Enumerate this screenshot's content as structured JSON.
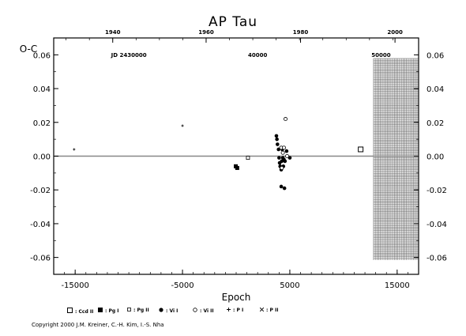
{
  "chart_data": {
    "type": "scatter",
    "title": "AP Tau",
    "xlabel": "Epoch",
    "ylabel": "O-C",
    "xlim": [
      -17000,
      17000
    ],
    "ylim": [
      -0.07,
      0.07
    ],
    "bottom_ticks": [
      -15000,
      -5000,
      5000,
      15000
    ],
    "bottom_tick_labels": [
      "-15000",
      "-5000",
      "5000",
      "15000"
    ],
    "left_ticks": [
      -0.06,
      -0.04,
      -0.02,
      0.0,
      0.02,
      0.04,
      0.06
    ],
    "left_tick_labels": [
      "-0.06",
      "-0.04",
      "-0.02",
      "0.00",
      "0.02",
      "0.04",
      "0.06"
    ],
    "top_year_axis": {
      "label_positions_epoch": [
        -11500,
        -2800,
        6000,
        14800
      ],
      "labels": [
        "1940",
        "1960",
        "1980",
        "2000"
      ]
    },
    "jd_axis": {
      "label_positions_epoch": [
        -10000,
        2000,
        13500
      ],
      "labels": [
        "JD 2430000",
        "40000",
        "50000"
      ]
    },
    "future_hatch_from_epoch": 12800,
    "zero_line": 0.0,
    "series": [
      {
        "name": ": Ccd II",
        "marker": "open-square",
        "points": [
          [
            11600,
            0.004
          ]
        ]
      },
      {
        "name": ": Pg I",
        "marker": "filled-square",
        "points": [
          [
            -35,
            -0.006
          ],
          [
            100,
            -0.007
          ]
        ]
      },
      {
        "name": ": Pg II",
        "marker": "small-open-square",
        "points": [
          [
            1100,
            -0.001
          ]
        ]
      },
      {
        "name": ": Vi I",
        "marker": "filled-circle",
        "points": [
          [
            3750,
            0.012
          ],
          [
            3800,
            0.01
          ],
          [
            3850,
            0.007
          ],
          [
            3950,
            0.004
          ],
          [
            4000,
            -0.001
          ],
          [
            4050,
            -0.004
          ],
          [
            4100,
            -0.006
          ],
          [
            4200,
            -0.008
          ],
          [
            4250,
            -0.003
          ],
          [
            4300,
            0.004
          ],
          [
            4350,
            -0.001
          ],
          [
            4400,
            -0.006
          ],
          [
            4450,
            -0.002
          ],
          [
            4550,
            -0.003
          ],
          [
            4700,
            0.003
          ],
          [
            4200,
            -0.018
          ],
          [
            4500,
            -0.019
          ],
          [
            5000,
            -0.001
          ]
        ]
      },
      {
        "name": ": Vi II",
        "marker": "open-circle",
        "points": [
          [
            4600,
            0.022
          ],
          [
            4200,
            0.005
          ],
          [
            4450,
            0.005
          ],
          [
            4350,
            0.002
          ],
          [
            4750,
            0.0
          ],
          [
            4250,
            -0.007
          ]
        ]
      },
      {
        "name": ": P I",
        "marker": "plus",
        "points": [
          [
            -15100,
            0.004
          ],
          [
            -5000,
            0.018
          ]
        ]
      },
      {
        "name": ": P II",
        "marker": "x",
        "points": []
      }
    ]
  },
  "copyright": "Copyright 2000 J.M. Kreiner, C.-H. Kim, I.-S. Nha"
}
